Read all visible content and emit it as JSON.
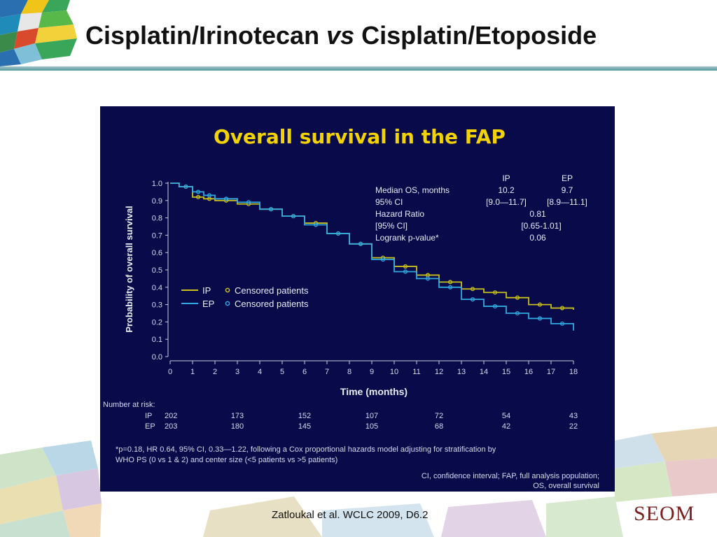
{
  "slide": {
    "title_part1": "Cisplatin/Irinotecan",
    "title_vs": "vs",
    "title_part2": "Cisplatin/Etoposide",
    "citation": "Zatloukal et al. WCLC 2009, D6.2",
    "brand": "SEOM"
  },
  "colors": {
    "panel_bg": "#080a4a",
    "ip": "#c9c01c",
    "ep": "#2fa9e0",
    "title_yellow": "#f2d300",
    "text": "#e8ecf4"
  },
  "chart_data": {
    "type": "line",
    "title": "Overall survival in the FAP",
    "xlabel": "Time (months)",
    "ylabel": "Probability of overall survival",
    "xlim": [
      0,
      18
    ],
    "ylim": [
      0.0,
      1.0
    ],
    "xticks": [
      "0",
      "1",
      "2",
      "3",
      "4",
      "5",
      "6",
      "7",
      "8",
      "9",
      "10",
      "11",
      "12",
      "13",
      "14",
      "15",
      "16",
      "17",
      "18"
    ],
    "yticks": [
      "0.0",
      "0.1",
      "0.2",
      "0.3",
      "0.4",
      "0.5",
      "0.6",
      "0.7",
      "0.8",
      "0.9",
      "1.0"
    ],
    "grid": false,
    "series": [
      {
        "name": "IP",
        "color": "#c9c01c",
        "x": [
          0,
          0.4,
          1,
          1.5,
          2,
          3,
          4,
          5,
          6,
          7,
          8,
          9,
          10,
          11,
          12,
          13,
          14,
          15,
          16,
          17,
          18
        ],
        "y": [
          1.0,
          0.98,
          0.92,
          0.91,
          0.9,
          0.88,
          0.85,
          0.81,
          0.77,
          0.71,
          0.65,
          0.57,
          0.52,
          0.47,
          0.43,
          0.39,
          0.37,
          0.34,
          0.3,
          0.28,
          0.27
        ]
      },
      {
        "name": "EP",
        "color": "#2fa9e0",
        "x": [
          0,
          0.4,
          1,
          1.5,
          2,
          3,
          4,
          5,
          6,
          7,
          8,
          9,
          10,
          11,
          12,
          13,
          14,
          15,
          16,
          17,
          18
        ],
        "y": [
          1.0,
          0.98,
          0.95,
          0.93,
          0.91,
          0.89,
          0.85,
          0.81,
          0.76,
          0.71,
          0.65,
          0.56,
          0.49,
          0.45,
          0.4,
          0.33,
          0.29,
          0.25,
          0.22,
          0.19,
          0.15
        ]
      }
    ],
    "legend": {
      "placement": "center-left",
      "entries": [
        {
          "line": "IP",
          "marker": "Censored patients"
        },
        {
          "line": "EP",
          "marker": "Censored patients"
        }
      ]
    },
    "stats_table": {
      "col_headers": [
        "IP",
        "EP"
      ],
      "rows": [
        {
          "label": "Median OS, months",
          "ip": "10.2",
          "ep": "9.7"
        },
        {
          "label": "95% CI",
          "ip": "[9.0—11.7]",
          "ep": "[8.9—11.1]"
        },
        {
          "label": "Hazard Ratio",
          "both": "0.81"
        },
        {
          "label": "[95% CI]",
          "both": "[0.65-1.01]"
        },
        {
          "label": "Logrank p-value*",
          "both": "0.06"
        }
      ]
    },
    "at_risk": {
      "heading": "Number at risk:",
      "months": [
        0,
        3,
        6,
        9,
        12,
        15,
        18
      ],
      "rows": [
        {
          "label": "IP",
          "values": [
            "202",
            "173",
            "152",
            "107",
            "72",
            "54",
            "43"
          ]
        },
        {
          "label": "EP",
          "values": [
            "203",
            "180",
            "145",
            "105",
            "68",
            "42",
            "22"
          ]
        }
      ]
    },
    "footnote": [
      "*p=0.18, HR 0.64, 95% CI, 0.33—1.22, following  a Cox proportional hazards model adjusting for stratification by",
      "WHO PS (0 vs 1 & 2) and center size (<5 patients vs >5 patients)"
    ],
    "abbreviations": [
      "CI, confidence interval; FAP, full analysis population;",
      "OS, overall survival"
    ]
  }
}
